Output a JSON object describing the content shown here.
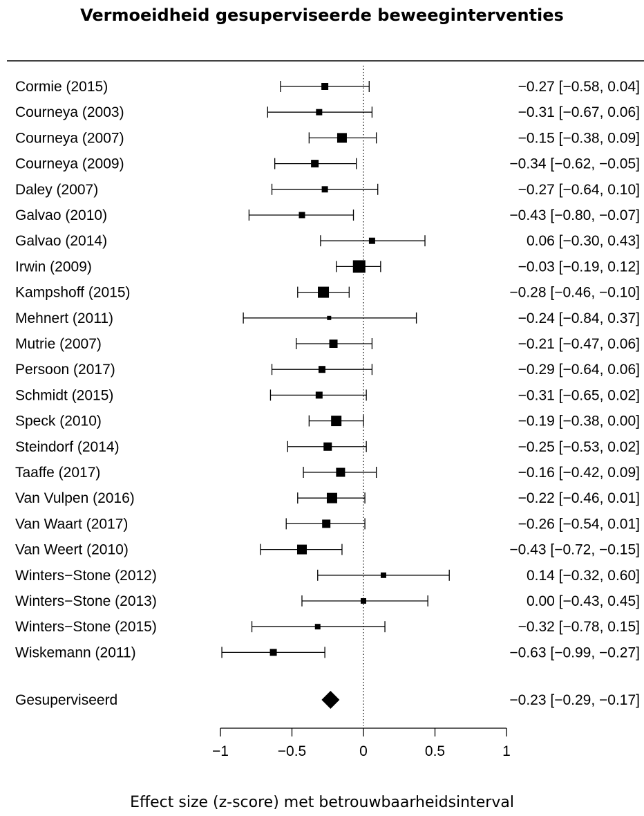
{
  "chart_data": {
    "type": "forest",
    "title": "Vermoeidheid gesuperviseerde beweeginterventies",
    "xlabel": "Effect size (z-score) met betrouwbaarheidsinterval",
    "xlim": [
      -1,
      1
    ],
    "xticks": [
      -1,
      -0.5,
      0,
      0.5,
      1
    ],
    "xtick_labels": [
      "−1",
      "−0.5",
      "0",
      "0.5",
      "1"
    ],
    "reference_line": 0,
    "studies": [
      {
        "label": "Cormie (2015)",
        "estimate": -0.27,
        "lower": -0.58,
        "upper": 0.04,
        "ci_text": "−0.27 [−0.58,  0.04]"
      },
      {
        "label": "Courneya (2003)",
        "estimate": -0.31,
        "lower": -0.67,
        "upper": 0.06,
        "ci_text": "−0.31 [−0.67,  0.06]"
      },
      {
        "label": "Courneya (2007)",
        "estimate": -0.15,
        "lower": -0.38,
        "upper": 0.09,
        "ci_text": "−0.15 [−0.38,  0.09]"
      },
      {
        "label": "Courneya (2009)",
        "estimate": -0.34,
        "lower": -0.62,
        "upper": -0.05,
        "ci_text": "−0.34 [−0.62, −0.05]"
      },
      {
        "label": "Daley (2007)",
        "estimate": -0.27,
        "lower": -0.64,
        "upper": 0.1,
        "ci_text": "−0.27 [−0.64,  0.10]"
      },
      {
        "label": "Galvao (2010)",
        "estimate": -0.43,
        "lower": -0.8,
        "upper": -0.07,
        "ci_text": "−0.43 [−0.80, −0.07]"
      },
      {
        "label": "Galvao (2014)",
        "estimate": 0.06,
        "lower": -0.3,
        "upper": 0.43,
        "ci_text": "0.06 [−0.30,  0.43]"
      },
      {
        "label": "Irwin (2009)",
        "estimate": -0.03,
        "lower": -0.19,
        "upper": 0.12,
        "ci_text": "−0.03 [−0.19,  0.12]"
      },
      {
        "label": "Kampshoff (2015)",
        "estimate": -0.28,
        "lower": -0.46,
        "upper": -0.1,
        "ci_text": "−0.28 [−0.46, −0.10]"
      },
      {
        "label": "Mehnert (2011)",
        "estimate": -0.24,
        "lower": -0.84,
        "upper": 0.37,
        "ci_text": "−0.24 [−0.84,  0.37]"
      },
      {
        "label": "Mutrie (2007)",
        "estimate": -0.21,
        "lower": -0.47,
        "upper": 0.06,
        "ci_text": "−0.21 [−0.47,  0.06]"
      },
      {
        "label": "Persoon (2017)",
        "estimate": -0.29,
        "lower": -0.64,
        "upper": 0.06,
        "ci_text": "−0.29 [−0.64,  0.06]"
      },
      {
        "label": "Schmidt (2015)",
        "estimate": -0.31,
        "lower": -0.65,
        "upper": 0.02,
        "ci_text": "−0.31 [−0.65,  0.02]"
      },
      {
        "label": "Speck (2010)",
        "estimate": -0.19,
        "lower": -0.38,
        "upper": 0.0,
        "ci_text": "−0.19 [−0.38,  0.00]"
      },
      {
        "label": "Steindorf (2014)",
        "estimate": -0.25,
        "lower": -0.53,
        "upper": 0.02,
        "ci_text": "−0.25 [−0.53,  0.02]"
      },
      {
        "label": "Taaffe (2017)",
        "estimate": -0.16,
        "lower": -0.42,
        "upper": 0.09,
        "ci_text": "−0.16 [−0.42,  0.09]"
      },
      {
        "label": "Van Vulpen (2016)",
        "estimate": -0.22,
        "lower": -0.46,
        "upper": 0.01,
        "ci_text": "−0.22 [−0.46,  0.01]"
      },
      {
        "label": "Van Waart (2017)",
        "estimate": -0.26,
        "lower": -0.54,
        "upper": 0.01,
        "ci_text": "−0.26 [−0.54,  0.01]"
      },
      {
        "label": "Van Weert (2010)",
        "estimate": -0.43,
        "lower": -0.72,
        "upper": -0.15,
        "ci_text": "−0.43 [−0.72, −0.15]"
      },
      {
        "label": "Winters−Stone (2012)",
        "estimate": 0.14,
        "lower": -0.32,
        "upper": 0.6,
        "ci_text": "0.14 [−0.32,  0.60]"
      },
      {
        "label": "Winters−Stone (2013)",
        "estimate": 0.0,
        "lower": -0.43,
        "upper": 0.45,
        "ci_text": "0.00 [−0.43,  0.45]"
      },
      {
        "label": "Winters−Stone (2015)",
        "estimate": -0.32,
        "lower": -0.78,
        "upper": 0.15,
        "ci_text": "−0.32 [−0.78,  0.15]"
      },
      {
        "label": "Wiskemann (2011)",
        "estimate": -0.63,
        "lower": -0.99,
        "upper": -0.27,
        "ci_text": "−0.63 [−0.99, −0.27]"
      }
    ],
    "summary": {
      "label": "Gesuperviseerd",
      "estimate": -0.23,
      "lower": -0.29,
      "upper": -0.17,
      "ci_text": "−0.23 [−0.29, −0.17]"
    }
  }
}
